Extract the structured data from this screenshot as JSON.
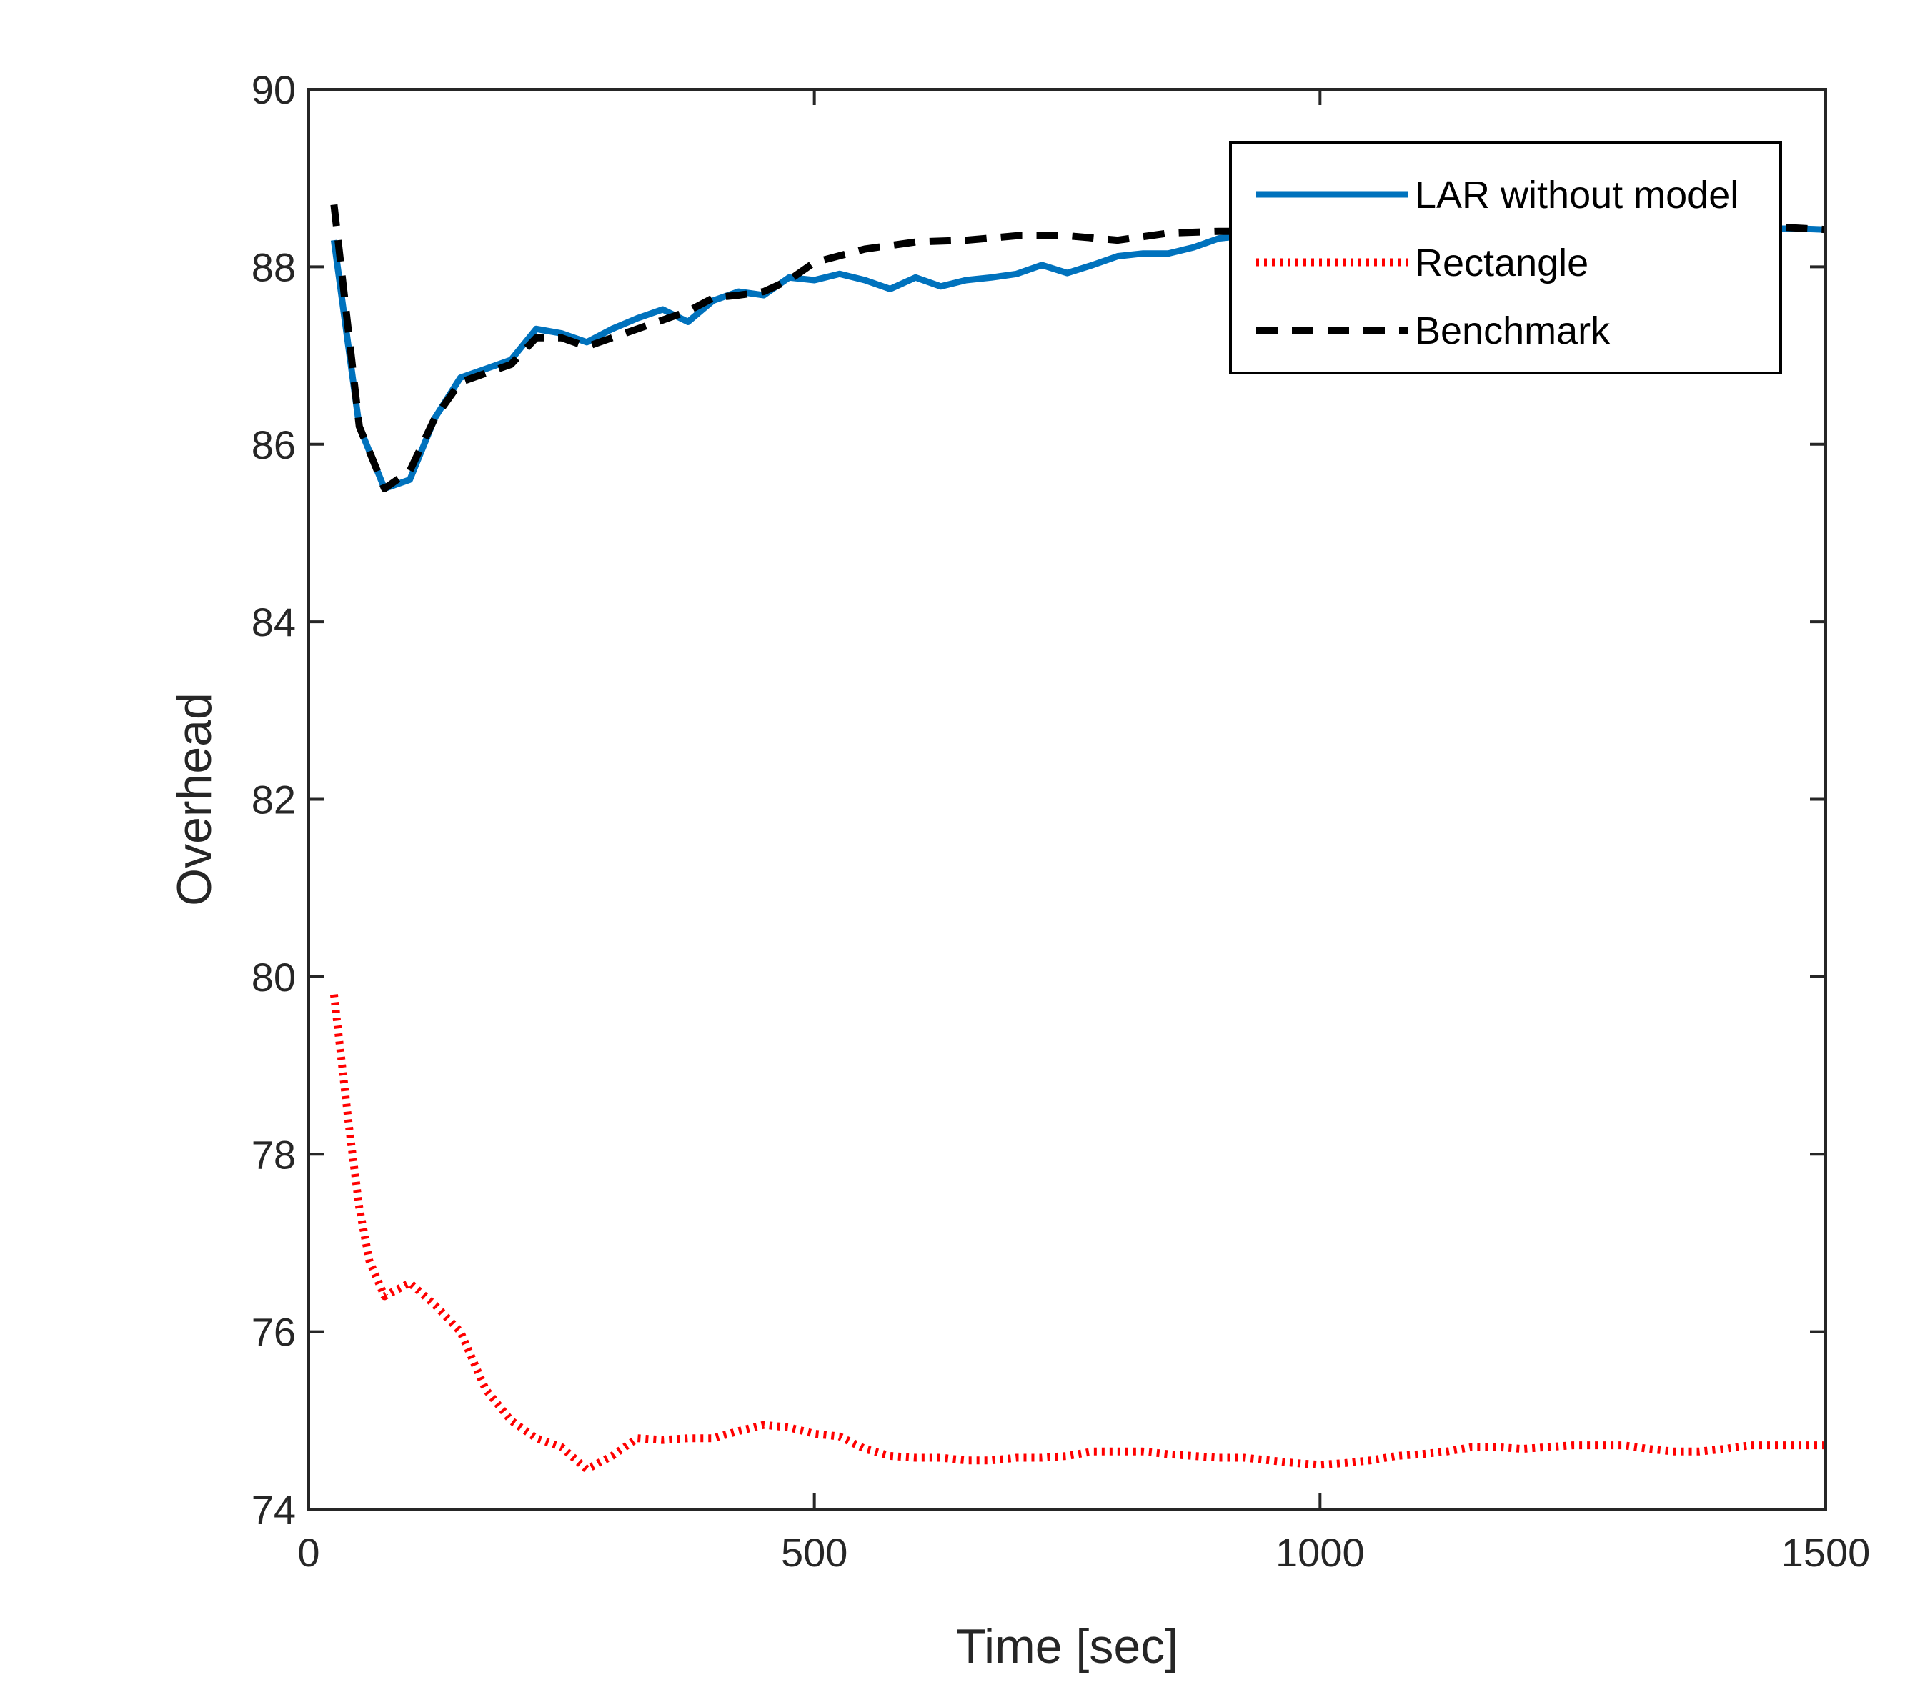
{
  "chart_data": {
    "type": "line",
    "title": "",
    "xlabel": "Time [sec]",
    "ylabel": "Overhead",
    "xlim": [
      0,
      1500
    ],
    "ylim": [
      74,
      90
    ],
    "grid": false,
    "legend_position": "top-right",
    "x_ticks": [
      0,
      500,
      1000,
      1500
    ],
    "x_tick_labels": [
      "0",
      "500",
      "1000",
      "1500"
    ],
    "y_ticks": [
      74,
      76,
      78,
      80,
      82,
      84,
      86,
      88,
      90
    ],
    "y_tick_labels": [
      "74",
      "76",
      "78",
      "80",
      "82",
      "84",
      "86",
      "88",
      "90"
    ],
    "series": [
      {
        "name": "LAR without model",
        "color": "#0072BD",
        "style": "solid",
        "x": [
          25,
          50,
          75,
          100,
          125,
          150,
          175,
          200,
          225,
          250,
          275,
          300,
          325,
          350,
          375,
          400,
          425,
          450,
          475,
          500,
          525,
          550,
          575,
          600,
          625,
          650,
          675,
          700,
          725,
          750,
          775,
          800,
          825,
          850,
          875,
          900,
          925,
          950,
          975,
          1000,
          1025,
          1050,
          1075,
          1100,
          1125,
          1150,
          1175,
          1200,
          1225,
          1250,
          1275,
          1300,
          1325,
          1350,
          1375,
          1400,
          1425,
          1450,
          1475,
          1500
        ],
        "y": [
          88.3,
          86.2,
          85.5,
          85.6,
          86.3,
          86.75,
          86.85,
          86.95,
          87.3,
          87.25,
          87.15,
          87.3,
          87.42,
          87.52,
          87.38,
          87.62,
          87.72,
          87.68,
          87.88,
          87.85,
          87.92,
          87.85,
          87.75,
          87.88,
          87.78,
          87.85,
          87.88,
          87.92,
          88.02,
          87.93,
          88.02,
          88.12,
          88.15,
          88.15,
          88.22,
          88.32,
          88.35,
          88.38,
          88.38,
          88.4,
          88.4,
          88.42,
          88.42,
          88.42,
          88.42,
          88.43,
          88.43,
          88.43,
          88.43,
          88.43,
          88.43,
          88.43,
          88.43,
          88.43,
          88.43,
          88.43,
          88.43,
          88.43,
          88.43,
          88.42
        ]
      },
      {
        "name": "Rectangle",
        "color": "#FF0000",
        "style": "dotted",
        "x": [
          25,
          40,
          50,
          60,
          75,
          100,
          125,
          150,
          175,
          200,
          225,
          250,
          275,
          300,
          325,
          350,
          375,
          400,
          425,
          450,
          475,
          500,
          525,
          550,
          575,
          600,
          625,
          650,
          675,
          700,
          725,
          750,
          775,
          800,
          825,
          850,
          875,
          900,
          925,
          950,
          975,
          1000,
          1025,
          1050,
          1075,
          1100,
          1125,
          1150,
          1175,
          1200,
          1225,
          1250,
          1275,
          1300,
          1325,
          1350,
          1375,
          1400,
          1425,
          1450,
          1475,
          1500
        ],
        "y": [
          79.8,
          78.3,
          77.4,
          76.8,
          76.4,
          76.55,
          76.3,
          76.0,
          75.35,
          75.0,
          74.8,
          74.7,
          74.45,
          74.6,
          74.8,
          74.78,
          74.8,
          74.8,
          74.88,
          74.95,
          74.92,
          74.85,
          74.82,
          74.68,
          74.6,
          74.58,
          74.58,
          74.55,
          74.55,
          74.58,
          74.58,
          74.6,
          74.65,
          74.65,
          74.65,
          74.62,
          74.6,
          74.58,
          74.58,
          74.55,
          74.52,
          74.5,
          74.52,
          74.55,
          74.6,
          74.62,
          74.65,
          74.7,
          74.7,
          74.68,
          74.7,
          74.72,
          74.72,
          74.72,
          74.68,
          74.65,
          74.65,
          74.68,
          74.72,
          74.72,
          74.72,
          74.72
        ]
      },
      {
        "name": "Benchmark",
        "color": "#000000",
        "style": "dashed",
        "x": [
          25,
          50,
          75,
          100,
          125,
          150,
          175,
          200,
          225,
          250,
          275,
          300,
          325,
          350,
          375,
          400,
          425,
          450,
          475,
          500,
          550,
          600,
          650,
          700,
          750,
          800,
          850,
          900,
          950,
          1000,
          1100,
          1200,
          1300,
          1400,
          1450,
          1500
        ],
        "y": [
          88.7,
          86.2,
          85.5,
          85.7,
          86.3,
          86.7,
          86.8,
          86.9,
          87.2,
          87.2,
          87.1,
          87.2,
          87.3,
          87.4,
          87.5,
          87.65,
          87.68,
          87.72,
          87.85,
          88.05,
          88.2,
          88.28,
          88.3,
          88.35,
          88.35,
          88.3,
          88.38,
          88.4,
          88.4,
          88.42,
          88.45,
          88.45,
          88.45,
          88.45,
          88.45,
          88.42
        ]
      }
    ]
  }
}
